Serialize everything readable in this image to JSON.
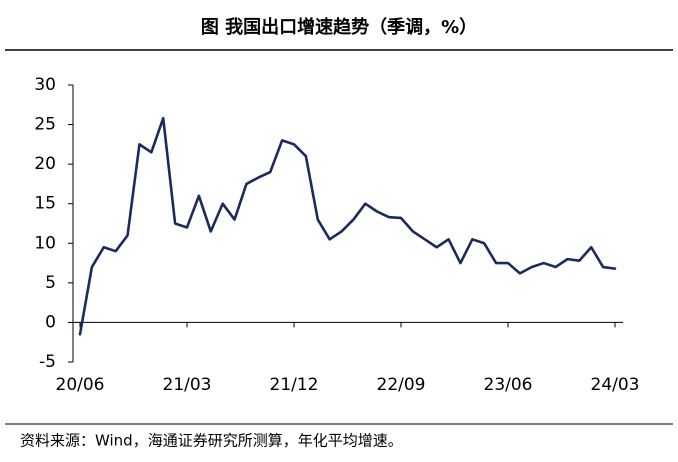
{
  "chart_data": {
    "type": "line",
    "title": "图  我国出口增速趋势（季调，%）",
    "note": "资料来源：Wind，海通证券研究所测算，年化平均增速。",
    "categories": [
      "20/06",
      null,
      null,
      null,
      null,
      null,
      null,
      null,
      null,
      "21/03",
      null,
      null,
      null,
      null,
      null,
      null,
      null,
      null,
      "21/12",
      null,
      null,
      null,
      null,
      null,
      null,
      null,
      null,
      "22/09",
      null,
      null,
      null,
      null,
      null,
      null,
      null,
      null,
      "23/06",
      null,
      null,
      null,
      null,
      null,
      null,
      null,
      null,
      "24/03"
    ],
    "series": [
      {
        "color": "#1c2a5c",
        "values": [
          -1.5,
          7,
          9.5,
          9,
          11,
          22.5,
          21.5,
          25.8,
          12.5,
          12,
          16,
          11.5,
          15,
          13,
          17.5,
          18.3,
          19,
          23,
          22.5,
          21,
          13,
          10.5,
          11.5,
          13,
          15,
          14,
          13.3,
          13.2,
          11.5,
          10.5,
          9.5,
          10.5,
          7.5,
          10.5,
          10,
          7.5,
          7.5,
          6.2,
          7,
          7.5,
          7,
          8,
          7.8,
          9.5,
          7,
          6.8
        ]
      }
    ],
    "ylim": [
      -5,
      30
    ],
    "yticks": [
      -5,
      0,
      5,
      10,
      15,
      20,
      25,
      30
    ]
  }
}
